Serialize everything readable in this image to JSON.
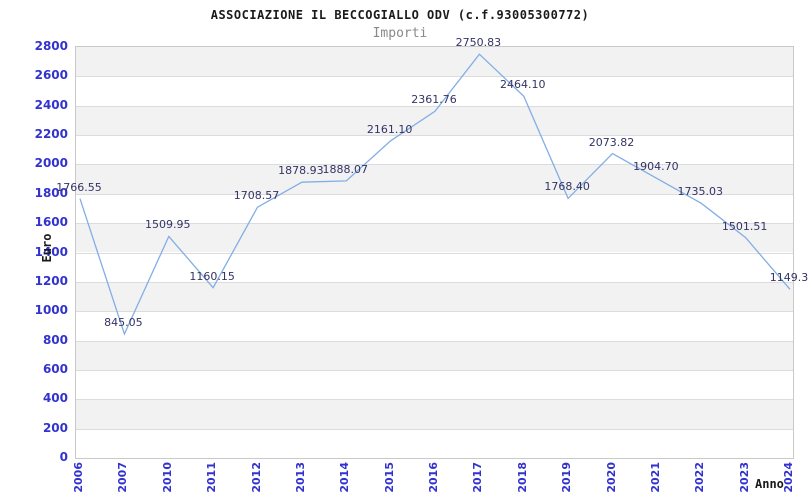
{
  "chart_data": {
    "type": "line",
    "title": "ASSOCIAZIONE IL BECCOGIALLO ODV (c.f.93005300772)",
    "subtitle": "Importi",
    "xlabel": "Anno",
    "ylabel": "Euro",
    "categories": [
      "2006",
      "2007",
      "2010",
      "2011",
      "2012",
      "2013",
      "2014",
      "2015",
      "2016",
      "2017",
      "2018",
      "2019",
      "2020",
      "2021",
      "2022",
      "2023",
      "2024"
    ],
    "values": [
      1766.55,
      845.05,
      1509.95,
      1160.15,
      1708.57,
      1878.93,
      1888.07,
      2161.1,
      2361.76,
      2750.83,
      2464.1,
      1768.4,
      2073.82,
      1904.7,
      1735.03,
      1501.51,
      1149.3
    ],
    "point_labels": [
      "1766.55",
      "845.05",
      "1509.95",
      "1160.15",
      "1708.57",
      "1878.93",
      "1888.07",
      "2161.10",
      "2361.76",
      "2750.83",
      "2464.10",
      "1768.40",
      "2073.82",
      "1904.70",
      "1735.03",
      "1501.51",
      "1149.3"
    ],
    "ylim": [
      0,
      2800
    ],
    "ytick_step": 200,
    "grid": true,
    "legend_position": "none",
    "notes": {
      "missing_years": "2008 and 2009 are not present on the axis",
      "last_label_clipped": "rightmost point label is cut off at the image edge"
    },
    "colors": {
      "line": "#82aee4",
      "tick_label": "#3232cd",
      "point_label": "#333366",
      "band_gray": "#f2f2f2",
      "gridline": "#dcdcdc",
      "plot_border": "#c9c9c9",
      "title": "#1a1a1a",
      "subtitle": "#8a8a8a",
      "axis_title": "#1a1a1a"
    }
  }
}
